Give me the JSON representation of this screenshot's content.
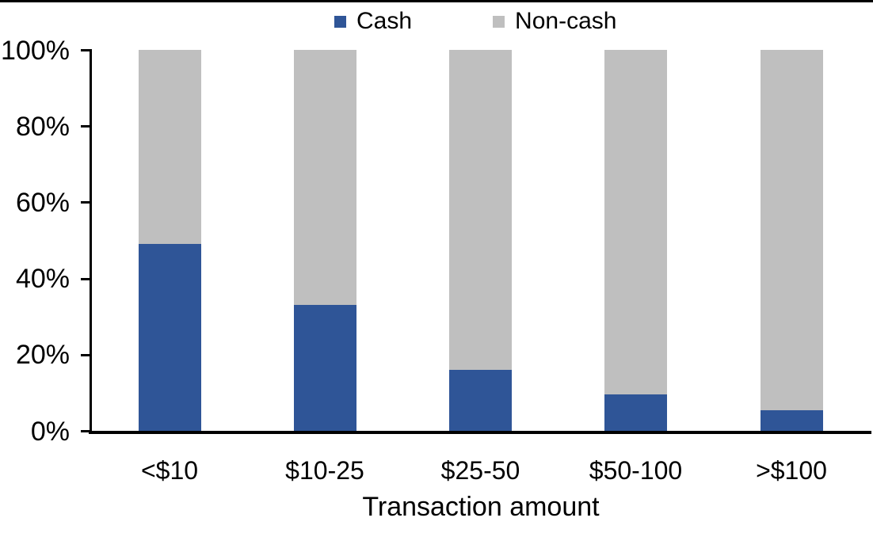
{
  "page": {
    "background": "#ffffff",
    "top_rule_color": "#000000"
  },
  "legend": {
    "items": [
      {
        "label": "Cash",
        "color": "#2F5597"
      },
      {
        "label": "Non-cash",
        "color": "#BFBFBF"
      }
    ]
  },
  "chart_data": {
    "type": "bar",
    "stacked": true,
    "normalized_100pct": true,
    "title": "",
    "xlabel": "Transaction amount",
    "ylabel": "",
    "categories": [
      "<$10",
      "$10-25",
      "$25-50",
      "$50-100",
      ">$100"
    ],
    "series": [
      {
        "name": "Cash",
        "color": "#2F5597",
        "values": [
          49,
          33,
          16,
          9.5,
          5.5
        ]
      },
      {
        "name": "Non-cash",
        "color": "#BFBFBF",
        "values": [
          51,
          67,
          84,
          90.5,
          94.5
        ]
      }
    ],
    "y_ticks": [
      "0%",
      "20%",
      "40%",
      "60%",
      "80%",
      "100%"
    ],
    "ylim": [
      0,
      100
    ],
    "grid": false,
    "legend_position": "top-center",
    "axis_color": "#000000",
    "text_color": "#000000"
  }
}
